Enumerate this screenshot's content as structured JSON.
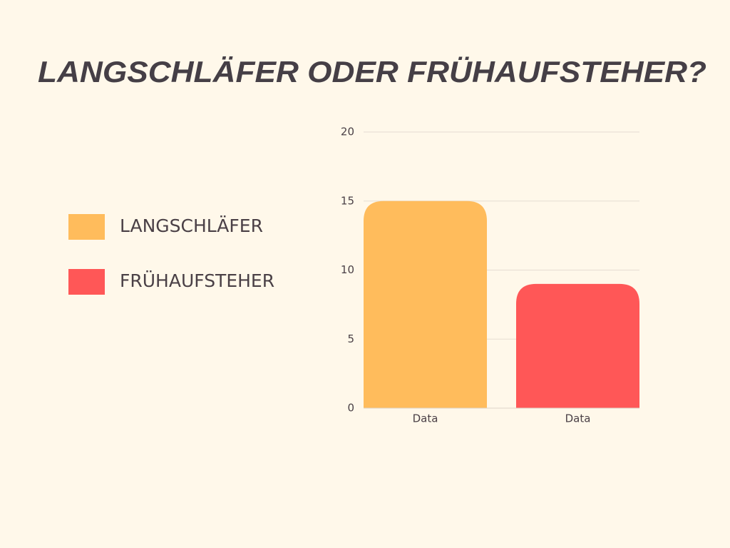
{
  "chart_data": {
    "type": "bar",
    "title": "LANGSCHLÄFER ODER FRÜHAUFSTEHER?",
    "categories": [
      "Data",
      "Data"
    ],
    "series": [
      {
        "name": "LANGSCHLÄFER",
        "color": "#ffbc5c",
        "values": [
          15,
          null
        ]
      },
      {
        "name": "FRÜHAUFSTEHER",
        "color": "#ff5757",
        "values": [
          null,
          9
        ]
      }
    ],
    "ylim": [
      0,
      20
    ],
    "yticks": [
      0,
      5,
      10,
      15,
      20
    ],
    "grid": true,
    "legend": "left"
  }
}
